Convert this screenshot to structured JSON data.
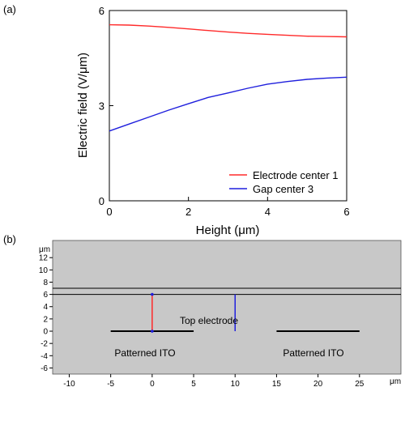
{
  "colors": {
    "electrode_line": "#ff2a2a",
    "gap_line": "#1f1fdd",
    "panel_b_bg": "#c8c8c8",
    "axis": "#000000"
  },
  "chart_data": [
    {
      "panel_label": "(a)",
      "type": "line",
      "xlabel": "Height (μm)",
      "ylabel": "Electric field (V/μm)",
      "xlim": [
        0,
        6
      ],
      "ylim": [
        0,
        6
      ],
      "xticks": [
        0,
        2,
        4,
        6
      ],
      "yticks": [
        0,
        3,
        6
      ],
      "grid": false,
      "legend_position": "bottom-right",
      "series": [
        {
          "name": "Electrode center 1",
          "color": "#ff2a2a",
          "x": [
            0,
            0.5,
            1,
            1.5,
            2,
            2.5,
            3,
            3.5,
            4,
            4.5,
            5,
            5.5,
            6
          ],
          "y": [
            5.55,
            5.54,
            5.51,
            5.47,
            5.42,
            5.37,
            5.32,
            5.28,
            5.25,
            5.22,
            5.19,
            5.18,
            5.17
          ]
        },
        {
          "name": "Gap center 3",
          "color": "#1f1fdd",
          "x": [
            0,
            0.5,
            1,
            1.5,
            2,
            2.5,
            3,
            3.5,
            4,
            4.5,
            5,
            5.5,
            6
          ],
          "y": [
            2.2,
            2.42,
            2.64,
            2.86,
            3.06,
            3.26,
            3.4,
            3.55,
            3.68,
            3.76,
            3.83,
            3.87,
            3.9
          ]
        }
      ]
    },
    {
      "panel_label": "(b)",
      "type": "diagram",
      "unit_label": "μm",
      "xlim": [
        -12,
        30
      ],
      "ylim": [
        -7,
        14.8
      ],
      "xticks": [
        -10,
        -5,
        0,
        5,
        10,
        15,
        20,
        25
      ],
      "yticks": [
        -6,
        -4,
        -2,
        0,
        2,
        4,
        6,
        8,
        10,
        12
      ],
      "labels": {
        "top_electrode": "Top electrode",
        "ito_left": "Patterned ITO",
        "ito_right": "Patterned ITO"
      },
      "top_electrode_y": [
        6,
        7
      ],
      "ito_segments": [
        [
          -5,
          5
        ],
        [
          15,
          25
        ]
      ],
      "probe_lines": [
        {
          "name": "Electrode center 1",
          "x": 0,
          "y": [
            0,
            6
          ],
          "color": "#ff2a2a"
        },
        {
          "name": "Gap center 3",
          "x": 10,
          "y": [
            0,
            6
          ],
          "color": "#1f1fdd"
        }
      ]
    }
  ]
}
